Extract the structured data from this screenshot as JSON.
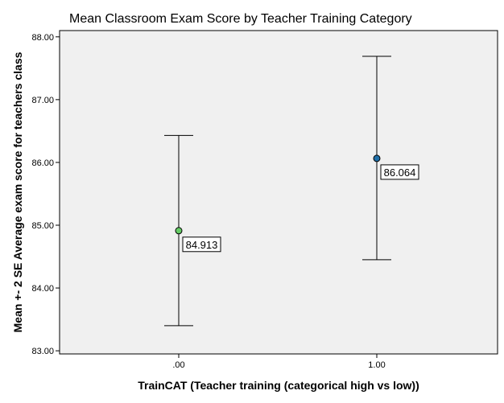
{
  "chart_data": {
    "type": "scatter",
    "title": "Mean Classroom Exam Score by Teacher Training Category",
    "xlabel": "TrainCAT (Teacher training (categorical high vs low))",
    "ylabel": "Mean +- 2 SE Average exam score for teachers class",
    "x_categories": [
      ".00",
      "1.00"
    ],
    "ylim": [
      82.95,
      88.1
    ],
    "y_ticks": [
      83.0,
      84.0,
      85.0,
      86.0,
      87.0,
      88.0
    ],
    "y_tick_labels": [
      "83.00",
      "84.00",
      "85.00",
      "86.00",
      "87.00",
      "88.00"
    ],
    "grid": false,
    "points": [
      {
        "category": ".00",
        "mean": 84.913,
        "lower": 83.4,
        "upper": 86.43,
        "label": "84.913",
        "color": "#66cc66"
      },
      {
        "category": "1.00",
        "mean": 86.064,
        "lower": 84.45,
        "upper": 87.69,
        "label": "86.064",
        "color": "#1f6fa8"
      }
    ]
  },
  "colors": {
    "plot_background": "#f0f0f0",
    "axis": "#000000"
  }
}
